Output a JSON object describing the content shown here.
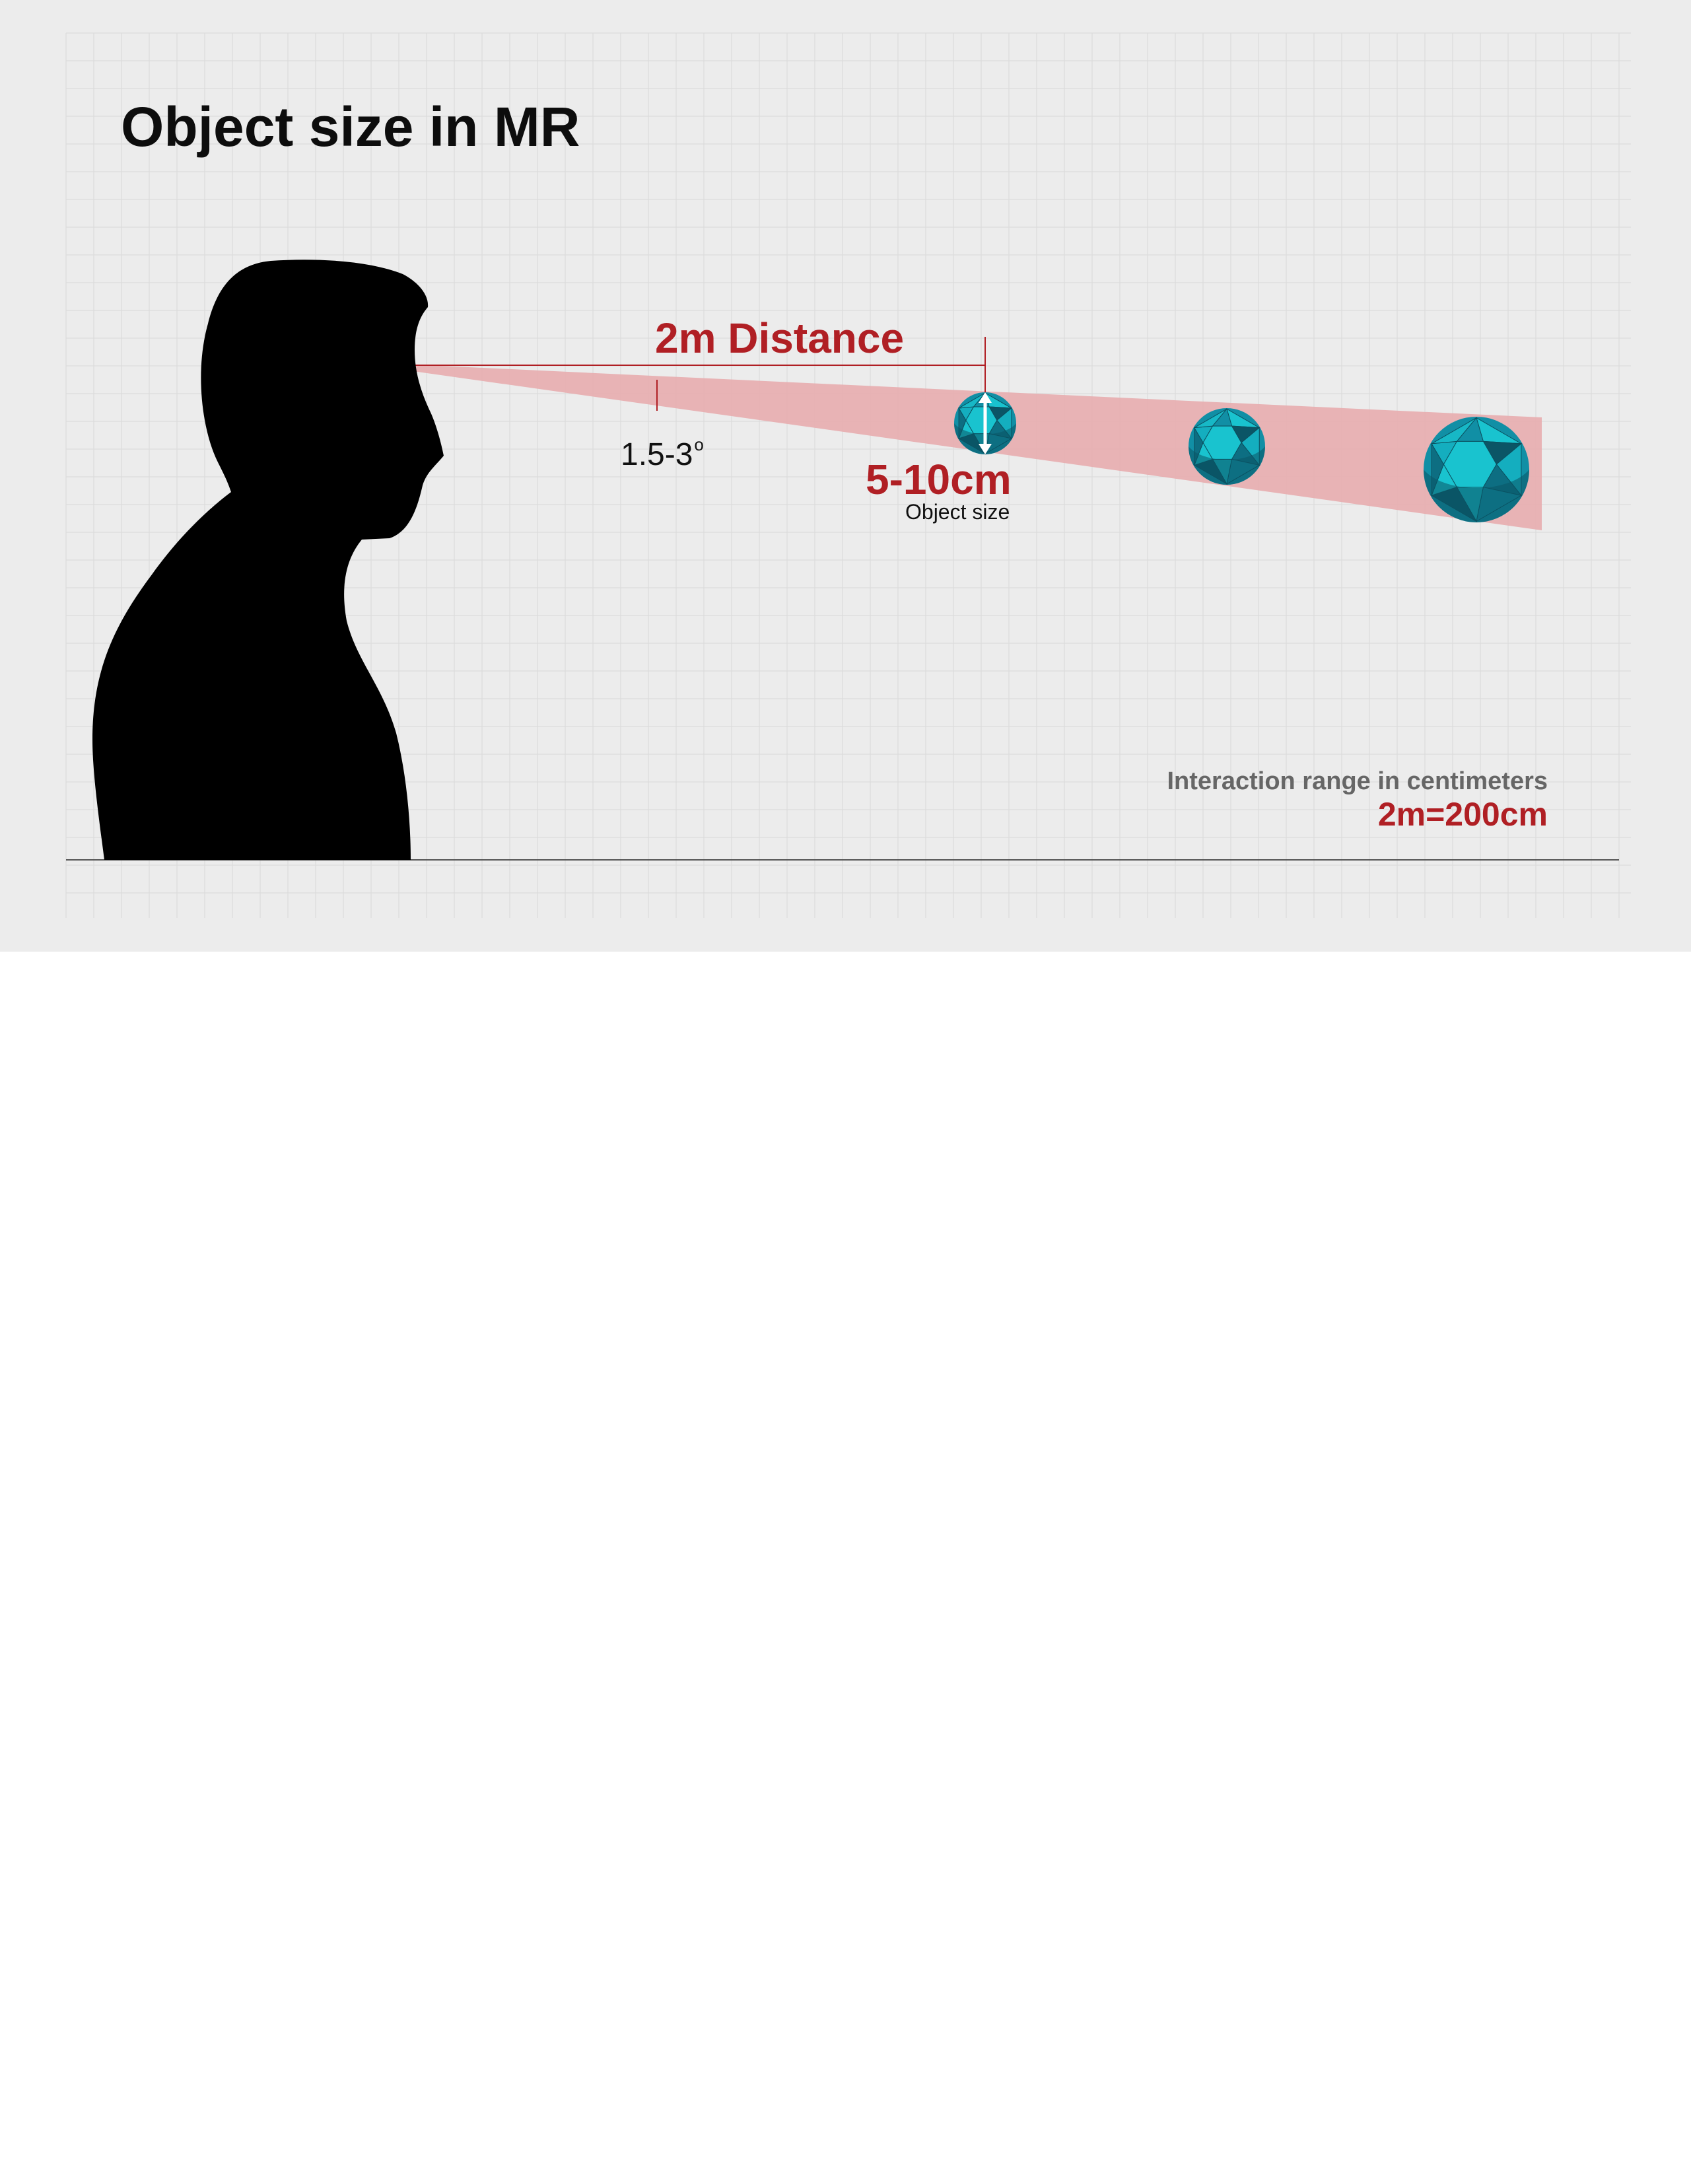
{
  "title": "Object size in MR",
  "distance_label": "2m Distance",
  "angle": {
    "value": "1.5-3",
    "unit_symbol": "o"
  },
  "object_size": {
    "value": "5-10cm",
    "caption": "Object size"
  },
  "range": {
    "label": "Interaction range in centimeters",
    "conversion": "2m=200cm"
  },
  "colors": {
    "panel_bg": "#ececec",
    "grid": "#d9d9d9",
    "accent_red": "#b01f24",
    "cone_fill": "#e7a9ab",
    "silhouette": "#000000",
    "sphere_light": "#19c3cf",
    "sphere_mid": "#118fa5",
    "sphere_dark": "#0b5566"
  },
  "icons": {
    "person": "person-silhouette",
    "sphere": "geodesic-sphere-icon",
    "arrow": "double-headed-arrow-icon"
  }
}
